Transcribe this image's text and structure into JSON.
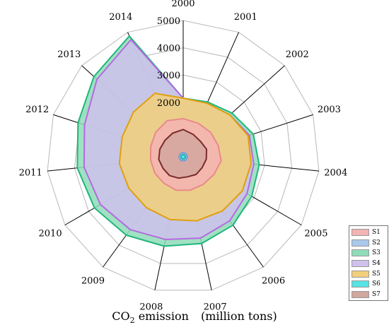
{
  "caption": {
    "prefix": "CO",
    "subscript": "2",
    "suffix": "emission",
    "unit": "(million tons)"
  },
  "chart_data": {
    "type": "radar",
    "categories": [
      "2000",
      "2001",
      "2002",
      "2003",
      "2004",
      "2005",
      "2006",
      "2007",
      "2008",
      "2009",
      "2010",
      "2011",
      "2012",
      "2013",
      "2014"
    ],
    "radial_ticks": [
      "2000",
      "3000",
      "4000",
      "5000"
    ],
    "rmax": 5000,
    "rings": 5,
    "legend_position": "bottom-right",
    "series": [
      {
        "name": "S1",
        "color": "#f4b3b3",
        "stroke": "#e88a8a",
        "values": [
          1400,
          1350,
          1350,
          1350,
          1400,
          1300,
          1250,
          1250,
          1250,
          1200,
          1200,
          1200,
          1250,
          1350,
          1450
        ]
      },
      {
        "name": "S2",
        "color": "#a9c8ec",
        "stroke": "#6d9fd6",
        "values": [
          150,
          150,
          150,
          150,
          150,
          150,
          150,
          150,
          150,
          150,
          150,
          150,
          150,
          150,
          150
        ]
      },
      {
        "name": "S3",
        "color": "#8fdcb9",
        "stroke": "#1fb67b",
        "values": [
          2150,
          2200,
          2400,
          2700,
          2800,
          2900,
          3100,
          3250,
          3350,
          3550,
          3750,
          3900,
          4050,
          4400,
          4850
        ]
      },
      {
        "name": "S4",
        "color": "#cfc1ec",
        "stroke": "#b56ae0",
        "values": [
          2150,
          2150,
          2300,
          2550,
          2600,
          2700,
          2900,
          3050,
          3100,
          3300,
          3500,
          3650,
          3800,
          4250,
          4700
        ]
      },
      {
        "name": "S5",
        "color": "#f2cf7a",
        "stroke": "#e0a00e",
        "values": [
          2150,
          2150,
          2300,
          2500,
          2500,
          2500,
          2450,
          2400,
          2350,
          2300,
          2300,
          2350,
          2350,
          2450,
          2550
        ]
      },
      {
        "name": "S6",
        "color": "#55e3e3",
        "stroke": "#13b8b8",
        "values": [
          80,
          80,
          80,
          80,
          80,
          80,
          80,
          80,
          80,
          80,
          80,
          80,
          80,
          80,
          80
        ]
      },
      {
        "name": "S7",
        "color": "#d2a79f",
        "stroke": "#7a2b2b",
        "values": [
          1000,
          900,
          850,
          900,
          850,
          800,
          800,
          750,
          800,
          850,
          850,
          900,
          900,
          900,
          950
        ]
      }
    ],
    "draw_order": [
      "S3",
      "S4",
      "S5",
      "S1",
      "S7",
      "S2",
      "S6"
    ]
  }
}
